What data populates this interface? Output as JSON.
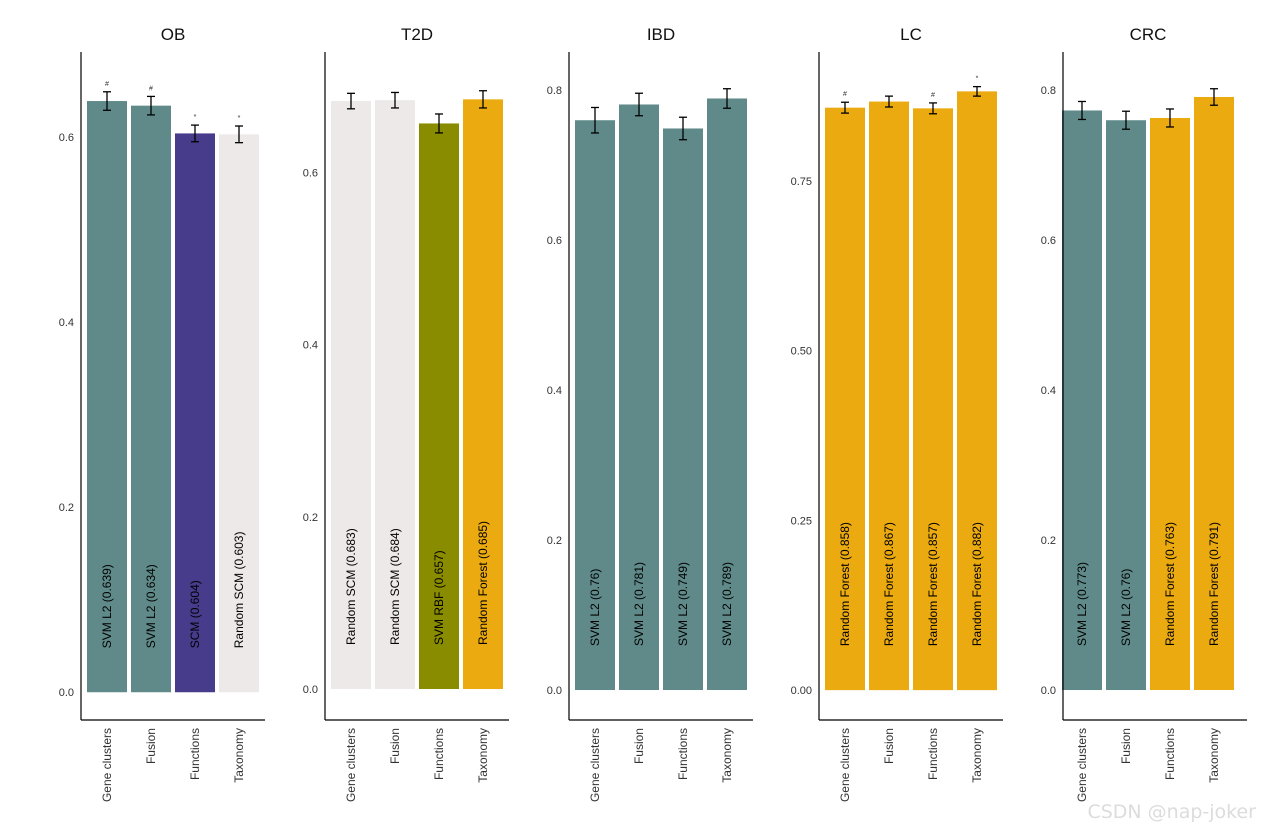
{
  "watermark": "CSDN @nap-joker",
  "chart_data": [
    {
      "type": "bar",
      "title": "OB",
      "categories": [
        "Gene clusters",
        "Fusion",
        "Functions",
        "Taxonomy"
      ],
      "values": [
        0.639,
        0.634,
        0.604,
        0.603
      ],
      "errors": [
        0.01,
        0.01,
        0.009,
        0.009
      ],
      "bar_labels": [
        "SVM L2 (0.639)",
        "SVM L2 (0.634)",
        "SCM (0.604)",
        "Random SCM (0.603)"
      ],
      "significance": [
        "#",
        "#",
        "*",
        "*"
      ],
      "colors": [
        "#5f8a89",
        "#5f8a89",
        "#473b8c",
        "#ede9e8"
      ],
      "ylim": [
        -0.03,
        0.692
      ],
      "yticks": [
        0.0,
        0.2,
        0.4,
        0.6
      ],
      "ytick_labels": [
        "0.0",
        "0.2",
        "0.4",
        "0.6"
      ]
    },
    {
      "type": "bar",
      "title": "T2D",
      "categories": [
        "Gene clusters",
        "Fusion",
        "Functions",
        "Taxonomy"
      ],
      "values": [
        0.683,
        0.684,
        0.657,
        0.685
      ],
      "errors": [
        0.009,
        0.009,
        0.011,
        0.01
      ],
      "bar_labels": [
        "Random SCM (0.683)",
        "Random SCM (0.684)",
        "SVM RBF (0.657)",
        "Random Forest (0.685)"
      ],
      "significance": [
        "",
        "",
        "",
        ""
      ],
      "colors": [
        "#ede9e8",
        "#ede9e8",
        "#8a8c00",
        "#eaaa10"
      ],
      "ylim": [
        -0.036,
        0.74
      ],
      "yticks": [
        0.0,
        0.2,
        0.4,
        0.6
      ],
      "ytick_labels": [
        "0.0",
        "0.2",
        "0.4",
        "0.6"
      ]
    },
    {
      "type": "bar",
      "title": "IBD",
      "categories": [
        "Gene clusters",
        "Fusion",
        "Functions",
        "Taxonomy"
      ],
      "values": [
        0.76,
        0.781,
        0.749,
        0.789
      ],
      "errors": [
        0.017,
        0.015,
        0.015,
        0.013
      ],
      "bar_labels": [
        "SVM L2 (0.76)",
        "SVM L2 (0.781)",
        "SVM L2 (0.749)",
        "SVM L2 (0.789)"
      ],
      "significance": [
        "",
        "",
        "",
        ""
      ],
      "colors": [
        "#5f8a89",
        "#5f8a89",
        "#5f8a89",
        "#5f8a89"
      ],
      "ylim": [
        -0.04,
        0.851
      ],
      "yticks": [
        0.0,
        0.2,
        0.4,
        0.6,
        0.8
      ],
      "ytick_labels": [
        "0.0",
        "0.2",
        "0.4",
        "0.6",
        "0.8"
      ]
    },
    {
      "type": "bar",
      "title": "LC",
      "categories": [
        "Gene clusters",
        "Fusion",
        "Functions",
        "Taxonomy"
      ],
      "values": [
        0.858,
        0.867,
        0.857,
        0.882
      ],
      "errors": [
        0.008,
        0.008,
        0.008,
        0.007
      ],
      "bar_labels": [
        "Random Forest (0.858)",
        "Random Forest (0.867)",
        "Random Forest (0.857)",
        "Random Forest (0.882)"
      ],
      "significance": [
        "#",
        "",
        "#",
        "*"
      ],
      "colors": [
        "#eaaa10",
        "#eaaa10",
        "#eaaa10",
        "#eaaa10"
      ],
      "ylim": [
        -0.044,
        0.94
      ],
      "yticks": [
        0.0,
        0.25,
        0.5,
        0.75
      ],
      "ytick_labels": [
        "0.00",
        "0.25",
        "0.50",
        "0.75"
      ]
    },
    {
      "type": "bar",
      "title": "CRC",
      "categories": [
        "Gene clusters",
        "Fusion",
        "Functions",
        "Taxonomy"
      ],
      "values": [
        0.773,
        0.76,
        0.763,
        0.791
      ],
      "errors": [
        0.012,
        0.012,
        0.012,
        0.011
      ],
      "bar_labels": [
        "SVM L2 (0.773)",
        "SVM L2 (0.76)",
        "Random Forest (0.763)",
        "Random Forest (0.791)"
      ],
      "significance": [
        "",
        "",
        "",
        ""
      ],
      "colors": [
        "#5f8a89",
        "#5f8a89",
        "#eaaa10",
        "#eaaa10"
      ],
      "ylim": [
        -0.04,
        0.851
      ],
      "yticks": [
        0.0,
        0.2,
        0.4,
        0.6,
        0.8
      ],
      "ytick_labels": [
        "0.0",
        "0.2",
        "0.4",
        "0.6",
        "0.8"
      ]
    }
  ]
}
